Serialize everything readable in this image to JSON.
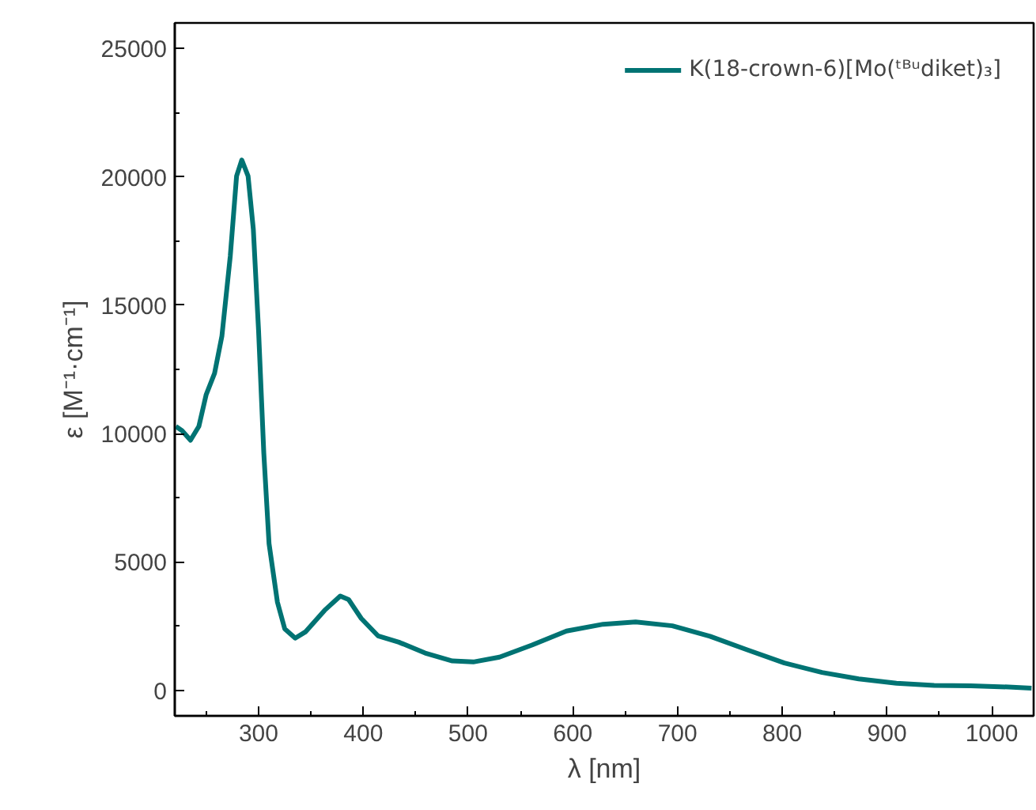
{
  "chart_data": {
    "type": "line",
    "xlabel": "λ [nm]",
    "ylabel": "ε [M⁻¹·cm⁻¹]",
    "xlim": [
      220,
      1040
    ],
    "ylim": [
      -1000,
      26000
    ],
    "xticks": [
      300,
      400,
      500,
      600,
      700,
      800,
      900,
      1000
    ],
    "yticks": [
      0,
      5000,
      10000,
      15000,
      20000,
      25000
    ],
    "grid": false,
    "legend": "top right",
    "marker": "none",
    "line_style": "solid",
    "series": [
      {
        "name": "K(18-crown-6)[Mo(ᵗᴮᵘdiket)₃]",
        "color": "#007373",
        "x": [
          221,
          227,
          235,
          243,
          250,
          258,
          265,
          273,
          279,
          284,
          290,
          295,
          300,
          305,
          310,
          318,
          325,
          335,
          345,
          363,
          378,
          386,
          398,
          414,
          434,
          459,
          485,
          505,
          530,
          561,
          594,
          629,
          660,
          695,
          731,
          766,
          802,
          838,
          873,
          909,
          945,
          980,
          1016,
          1038
        ],
        "values": [
          10280,
          10110,
          9740,
          10280,
          11520,
          12350,
          13800,
          16920,
          20030,
          20660,
          20030,
          17960,
          14010,
          9240,
          5710,
          3430,
          2390,
          2030,
          2280,
          3110,
          3670,
          3530,
          2800,
          2120,
          1870,
          1450,
          1140,
          1100,
          1290,
          1760,
          2305,
          2570,
          2660,
          2510,
          2100,
          1580,
          1060,
          690,
          440,
          270,
          190,
          170,
          125,
          80
        ]
      }
    ]
  }
}
